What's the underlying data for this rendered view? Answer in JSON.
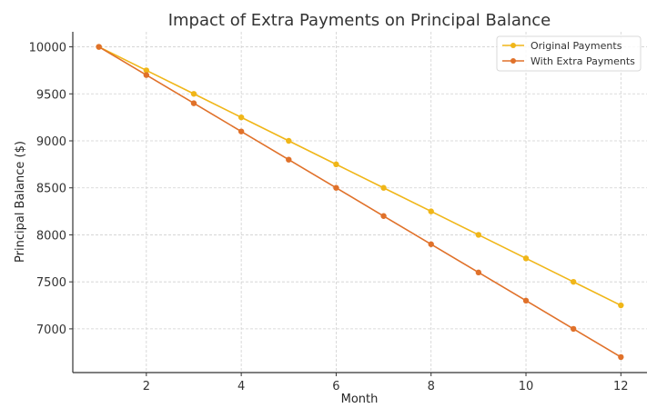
{
  "chart_data": {
    "type": "line",
    "title": "Impact of Extra Payments on Principal Balance",
    "xlabel": "Month",
    "ylabel": "Principal Balance ($)",
    "x": [
      1,
      2,
      3,
      4,
      5,
      6,
      7,
      8,
      9,
      10,
      11,
      12
    ],
    "series": [
      {
        "name": "Original Payments",
        "color": "#f0b618",
        "values": [
          10000,
          9750,
          9500,
          9250,
          9000,
          8750,
          8500,
          8250,
          8000,
          7750,
          7500,
          7250
        ]
      },
      {
        "name": "With Extra Payments",
        "color": "#e0712a",
        "values": [
          10000,
          9700,
          9400,
          9100,
          8800,
          8500,
          8200,
          7900,
          7600,
          7300,
          7000,
          6700
        ]
      }
    ],
    "xticks": [
      2,
      4,
      6,
      8,
      10,
      12
    ],
    "yticks": [
      7000,
      7500,
      8000,
      8500,
      9000,
      9500,
      10000
    ],
    "xlim": [
      0.45,
      12.55
    ],
    "ylim": [
      6535,
      10160
    ],
    "grid": true,
    "legend_position": "upper right"
  }
}
